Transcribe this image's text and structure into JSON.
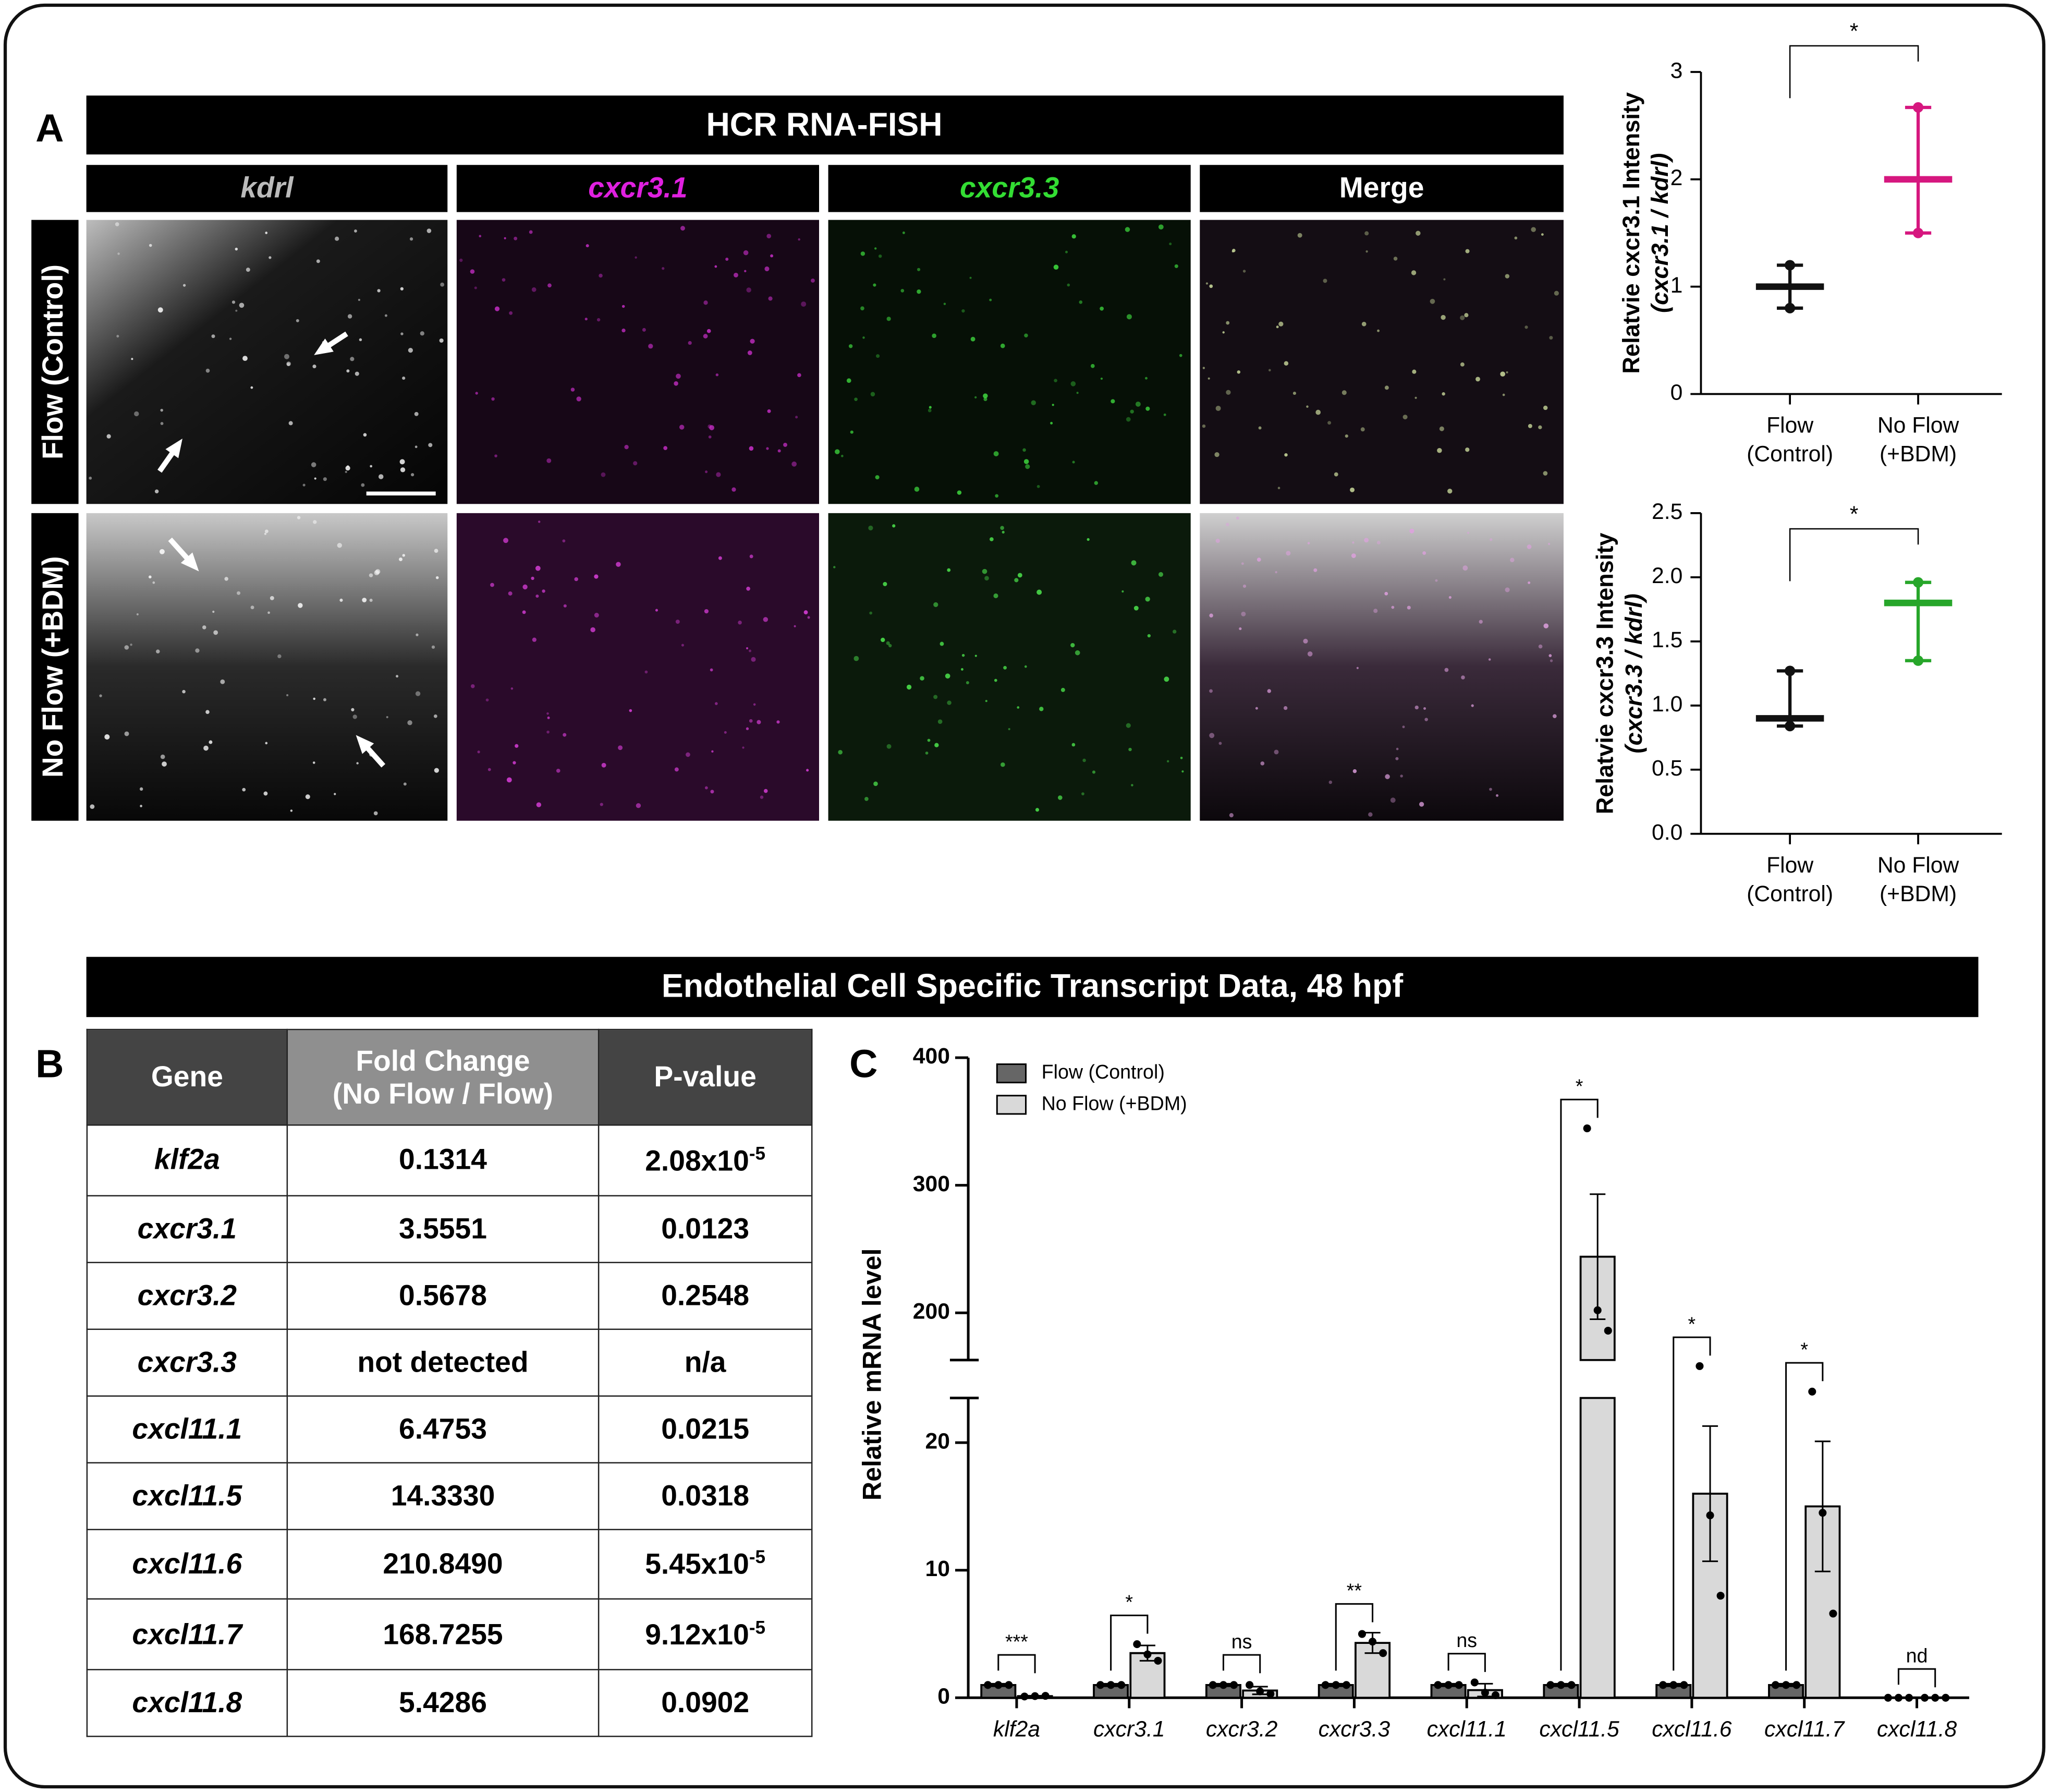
{
  "panel_labels": [
    "A",
    "B",
    "C"
  ],
  "panel_a": {
    "title": "HCR RNA-FISH",
    "columns": [
      "kdrl",
      "cxcr3.1",
      "cxcr3.3",
      "Merge"
    ],
    "rows": [
      "Flow (Control)",
      "No Flow (+BDM)"
    ]
  },
  "section_title": "Endothelial Cell Specific Transcript Data, 48 hpf",
  "table": {
    "header": [
      "Gene",
      [
        "Fold Change",
        "(No Flow / Flow)"
      ],
      "P-value"
    ],
    "rows": [
      [
        "klf2a",
        "0.1314",
        {
          "base": "2.08x10",
          "exp": "-5"
        }
      ],
      [
        "cxcr3.1",
        "3.5551",
        "0.0123"
      ],
      [
        "cxcr3.2",
        "0.5678",
        "0.2548"
      ],
      [
        "cxcr3.3",
        "not detected",
        "n/a"
      ],
      [
        "cxcl11.1",
        "6.4753",
        "0.0215"
      ],
      [
        "cxcl11.5",
        "14.3330",
        "0.0318"
      ],
      [
        "cxcl11.6",
        "210.8490",
        {
          "base": "5.45x10",
          "exp": "-5"
        }
      ],
      [
        "cxcl11.7",
        "168.7255",
        {
          "base": "9.12x10",
          "exp": "-5"
        }
      ],
      [
        "cxcl11.8",
        "5.4286",
        "0.0902"
      ]
    ]
  },
  "chart_data": [
    {
      "type": "dot",
      "ylabel": "Relatvie cxcr3.1 Intensity",
      "ylabel2": "(cxcr3.1 / kdrl)",
      "categories": [
        [
          "Flow",
          "(Control)"
        ],
        [
          "No Flow",
          "(+BDM)"
        ]
      ],
      "colors": [
        "#111111",
        "#d6177f"
      ],
      "means": [
        1.0,
        2.0
      ],
      "mins": [
        0.8,
        1.5
      ],
      "maxs": [
        1.2,
        2.67
      ],
      "points": [
        [
          0.8,
          1.2
        ],
        [
          1.5,
          2.67
        ]
      ],
      "ylim": [
        0,
        3
      ],
      "yticks": [
        0,
        1,
        2,
        3
      ],
      "significance": "*"
    },
    {
      "type": "dot",
      "ylabel": "Relatvie cxcr3.3 Intensity",
      "ylabel2": "(cxcr3.3 / kdrl)",
      "categories": [
        [
          "Flow",
          "(Control)"
        ],
        [
          "No Flow",
          "(+BDM)"
        ]
      ],
      "colors": [
        "#111111",
        "#27a62a"
      ],
      "means": [
        0.9,
        1.8
      ],
      "mins": [
        0.84,
        1.35
      ],
      "maxs": [
        1.27,
        1.96
      ],
      "points": [
        [
          0.84,
          1.27
        ],
        [
          1.35,
          1.96
        ]
      ],
      "ylim": [
        0,
        2.5
      ],
      "yticks": [
        {
          "value": 0,
          "label": "0.0"
        },
        {
          "value": 0.5,
          "label": "0.5"
        },
        {
          "value": 1,
          "label": "1.0"
        },
        {
          "value": 1.5,
          "label": "1.5"
        },
        {
          "value": 2,
          "label": "2.0"
        },
        {
          "value": 2.5,
          "label": "2.5"
        }
      ],
      "significance": "*"
    },
    {
      "type": "bar",
      "ylabel": "Relative mRNA level",
      "categories": [
        "klf2a",
        "cxcr3.1",
        "cxcr3.2",
        "cxcr3.3",
        "cxcl11.1",
        "cxcl11.5",
        "cxcl11.6",
        "cxcl11.7",
        "cxcl11.8"
      ],
      "series": [
        {
          "name": "Flow (Control)",
          "color": "#666666",
          "values": [
            1,
            1,
            1,
            1,
            1,
            1,
            1,
            1,
            0
          ],
          "errors": [
            0.1,
            0.1,
            0.1,
            0.1,
            0.1,
            0.1,
            0.1,
            0.1,
            0
          ],
          "points": [
            [
              1,
              1,
              1
            ],
            [
              1,
              1,
              1
            ],
            [
              1,
              1,
              1
            ],
            [
              1,
              1,
              1
            ],
            [
              1,
              1,
              1
            ],
            [
              1,
              1,
              1
            ],
            [
              1,
              1,
              1
            ],
            [
              1,
              1,
              1
            ],
            [
              0,
              0,
              0
            ]
          ]
        },
        {
          "name": "No Flow (+BDM)",
          "color": "#d9d9d9",
          "values": [
            0.13,
            3.5,
            0.57,
            4.3,
            0.6,
            244,
            16,
            15,
            0
          ],
          "errors": [
            0.03,
            0.6,
            0.3,
            0.8,
            0.5,
            49,
            5.3,
            5.1,
            0
          ],
          "points": [
            [
              0.1,
              0.13,
              0.15
            ],
            [
              4.2,
              3.4,
              2.9
            ],
            [
              1,
              0.5,
              0.3
            ],
            [
              5,
              4.4,
              3.5
            ],
            [
              1.2,
              0.4,
              0.2
            ],
            [
              344.6,
              202,
              186
            ],
            [
              26,
              14.3,
              8
            ],
            [
              24,
              14.5,
              6.6
            ],
            [
              0,
              0,
              0
            ]
          ]
        }
      ],
      "significance": [
        "***",
        "*",
        "ns",
        "**",
        "ns",
        "*",
        "*",
        "*",
        "nd"
      ],
      "ylim": [
        0,
        400
      ],
      "axis_break": [
        23.5,
        163
      ],
      "yticks": [
        0,
        10,
        20,
        200,
        300,
        400
      ]
    }
  ]
}
